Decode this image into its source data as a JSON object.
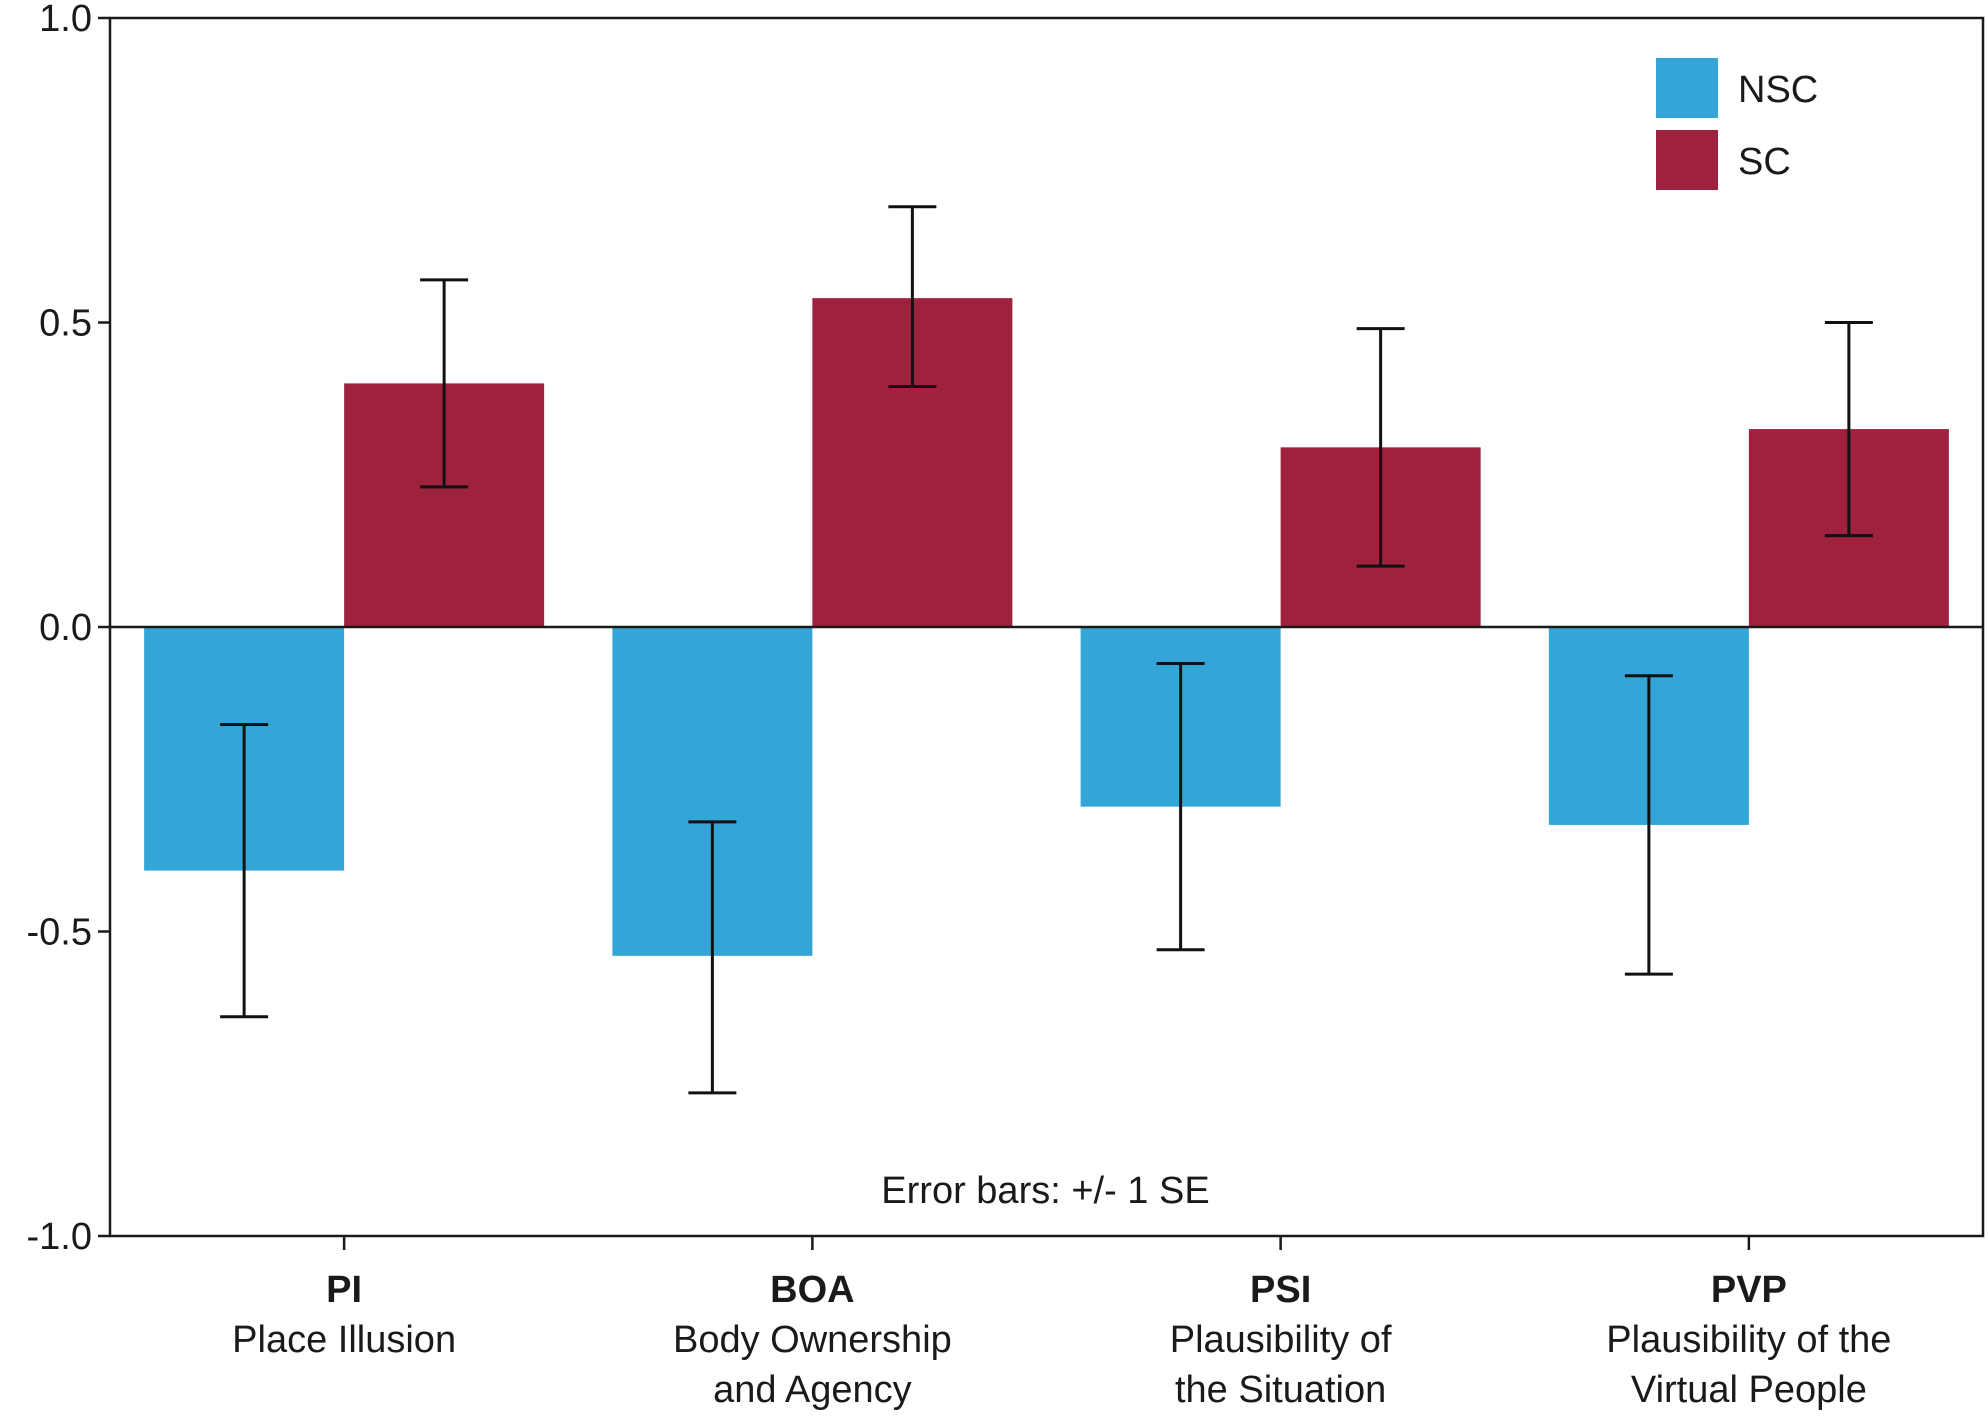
{
  "chart_data": {
    "type": "bar",
    "title": "",
    "xlabel": "",
    "ylabel": "",
    "ylim": [
      -1.0,
      1.0
    ],
    "yticks": [
      -1.0,
      -0.5,
      0.0,
      0.5,
      1.0
    ],
    "ytick_labels": [
      "-1.0",
      "-0.5",
      "0.0",
      "0.5",
      "1.0"
    ],
    "categories": [
      {
        "code": "PI",
        "name_lines": [
          "Place Illusion"
        ]
      },
      {
        "code": "BOA",
        "name_lines": [
          "Body Ownership",
          "and Agency"
        ]
      },
      {
        "code": "PSI",
        "name_lines": [
          "Plausibility of",
          "the Situation"
        ]
      },
      {
        "code": "PVP",
        "name_lines": [
          "Plausibility of the",
          "Virtual People"
        ]
      }
    ],
    "series": [
      {
        "name": "NSC",
        "color": "#33a5d6",
        "values": [
          -0.4,
          -0.54,
          -0.295,
          -0.325
        ],
        "err_low": [
          -0.64,
          -0.765,
          -0.53,
          -0.57
        ],
        "err_high": [
          -0.16,
          -0.32,
          -0.06,
          -0.08
        ]
      },
      {
        "name": "SC",
        "color": "#9e213e",
        "values": [
          0.4,
          0.54,
          0.295,
          0.325
        ],
        "err_low": [
          0.23,
          0.395,
          0.1,
          0.15
        ],
        "err_high": [
          0.57,
          0.69,
          0.49,
          0.5
        ]
      }
    ],
    "legend_position": "top-right",
    "annotation": "Error bars: +/- 1 SE",
    "grid": false
  }
}
